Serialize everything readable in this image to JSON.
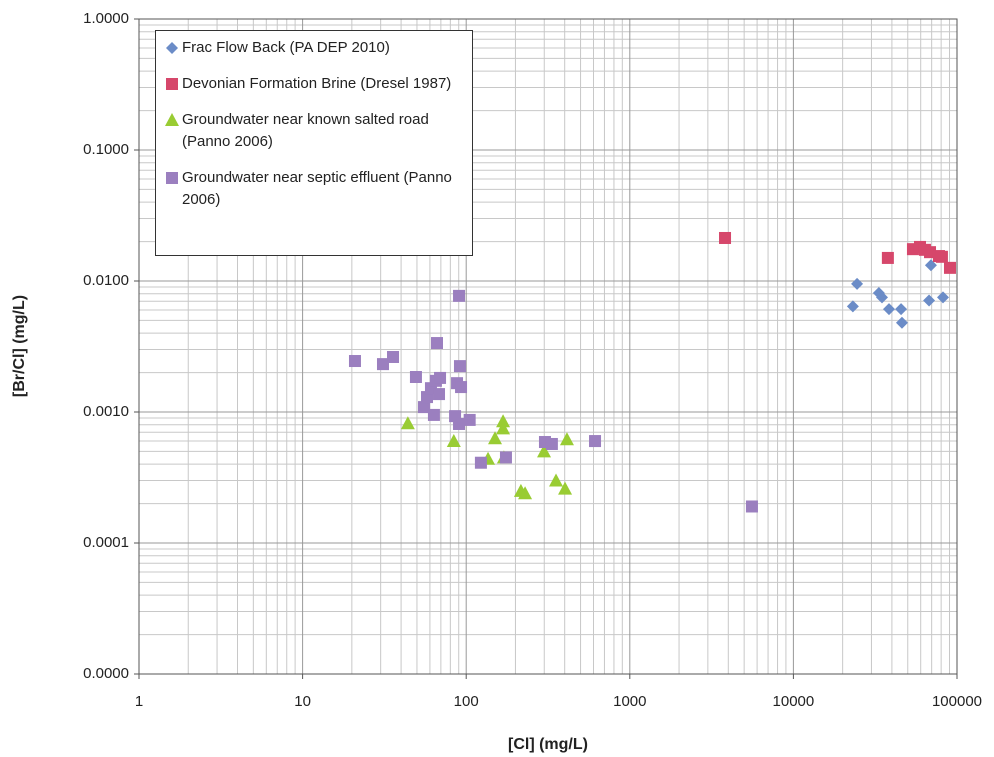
{
  "chart_data": {
    "type": "scatter",
    "xlabel": "[Cl] (mg/L)",
    "ylabel": "[Br/Cl] (mg/L)",
    "xscale": "log",
    "yscale": "log",
    "xlim": [
      1,
      100000
    ],
    "ylim": [
      1e-05,
      1
    ],
    "xticks": [
      1,
      10,
      100,
      1000,
      10000,
      100000
    ],
    "yticks": [
      {
        "value": 1,
        "label": "1.0000"
      },
      {
        "value": 0.1,
        "label": "0.1000"
      },
      {
        "value": 0.01,
        "label": "0.0100"
      },
      {
        "value": 0.001,
        "label": "0.0010"
      },
      {
        "value": 0.0001,
        "label": "0.0001"
      },
      {
        "value": 1e-05,
        "label": "0.0000"
      }
    ],
    "grid": true,
    "minor_grid": true,
    "legend": "upper left",
    "series": [
      {
        "name": "Frac Flow Back (PA DEP 2010)",
        "color": "#6b8cc7",
        "marker": "diamond",
        "x": [
          23100,
          24500,
          33300,
          34800,
          38400,
          45500,
          46100,
          67500,
          69300,
          82100
        ],
        "values": [
          0.0064,
          0.0095,
          0.0081,
          0.0075,
          0.0061,
          0.0061,
          0.0048,
          0.0071,
          0.0132,
          0.0075
        ]
      },
      {
        "name": "Devonian Formation Brine (Dresel 1987)",
        "color": "#d6476b",
        "marker": "square",
        "x": [
          3820,
          37800,
          53800,
          59400,
          63700,
          68400,
          77600,
          80900,
          90600
        ],
        "values": [
          0.0213,
          0.015,
          0.0175,
          0.0182,
          0.0173,
          0.0166,
          0.0155,
          0.0153,
          0.0126
        ]
      },
      {
        "name": "Groundwater near known salted road (Panno 2006)",
        "color": "#99cc33",
        "marker": "triangle",
        "x": [
          44,
          84,
          136,
          150,
          168,
          168,
          170,
          216,
          229,
          299,
          354,
          402,
          413
        ],
        "values": [
          0.00082,
          0.0006,
          0.00044,
          0.00063,
          0.00085,
          0.00075,
          0.00045,
          0.00025,
          0.00024,
          0.0005,
          0.0003,
          0.00026,
          0.00062
        ]
      },
      {
        "name": "Groundwater near septic effluent (Panno 2006)",
        "color": "#9b7fbf",
        "marker": "square",
        "x": [
          20.9,
          31,
          35.7,
          49.3,
          55.2,
          57.6,
          60.9,
          63.5,
          65.3,
          66.3,
          68.2,
          69.2,
          85.5,
          87.9,
          90.4,
          90.4,
          91.6,
          93,
          105,
          123,
          175,
          303,
          334,
          613,
          5580
        ],
        "values": [
          0.00245,
          0.00232,
          0.00263,
          0.00185,
          0.00109,
          0.0013,
          0.00152,
          0.00095,
          0.00173,
          0.00336,
          0.00137,
          0.00182,
          0.00093,
          0.00166,
          0.0077,
          0.00081,
          0.00224,
          0.00155,
          0.00087,
          0.00041,
          0.00045,
          0.00059,
          0.00057,
          0.0006,
          0.00019
        ]
      }
    ]
  }
}
